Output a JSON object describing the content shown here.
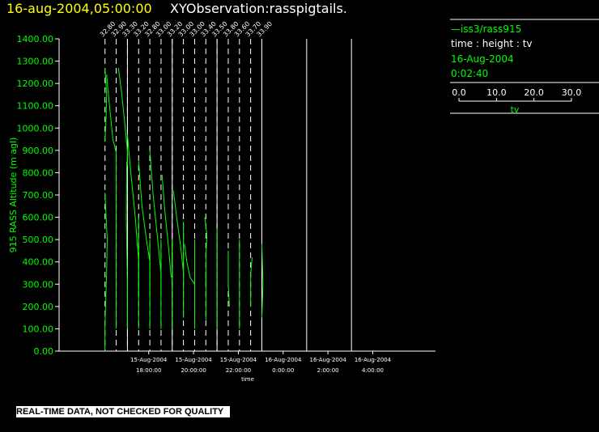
{
  "header": {
    "date_label": "16-aug-2004,05:00:00",
    "title": "XYObservation:rasspigtails."
  },
  "legend": {
    "series_line": "—iss3/rass915",
    "description": "time : height : tv",
    "date": "16-Aug-2004",
    "duration": "0:02:40",
    "scale_ticks": [
      "0.0",
      "10.0",
      "20.0",
      "30.0"
    ],
    "scale_label": "tv"
  },
  "footer": {
    "quality_note": "REAL-TIME DATA, NOT CHECKED FOR QUALITY"
  },
  "colors": {
    "background": "#000000",
    "trace": "#00ff00",
    "axis": "#ffffff",
    "title_date": "#ffff00"
  },
  "chart_data": {
    "type": "line",
    "title": "XYObservation:rasspigtails.",
    "ylabel": "915 RASS Altitude (m agl)",
    "xlabel": "time",
    "ylim": [
      0,
      1400
    ],
    "yticks": [
      "0.00",
      "100.00",
      "200.00",
      "300.00",
      "400.00",
      "500.00",
      "600.00",
      "700.00",
      "800.00",
      "900.00",
      "1000.00",
      "1100.00",
      "1200.00",
      "1300.00",
      "1400.00"
    ],
    "xlim_hours": [
      14.0,
      30.8
    ],
    "xticks": [
      {
        "hour": 18,
        "date": "15-Aug-2004",
        "time": "18:00:00"
      },
      {
        "hour": 20,
        "date": "15-Aug-2004",
        "time": "20:00:00"
      },
      {
        "hour": 22,
        "date": "15-Aug-2004",
        "time": "22:00:00"
      },
      {
        "hour": 24,
        "date": "16-Aug-2004",
        "time": "0:00:00"
      },
      {
        "hour": 26,
        "date": "16-Aug-2004",
        "time": "2:00:00"
      },
      {
        "hour": 28,
        "date": "16-Aug-2004",
        "time": "4:00:00"
      }
    ],
    "reference_lines": [
      {
        "hour": 16.05,
        "label": "32.80"
      },
      {
        "hour": 16.55,
        "label": "32.90"
      },
      {
        "hour": 17.05,
        "label": "33.30"
      },
      {
        "hour": 17.55,
        "label": "33.20"
      },
      {
        "hour": 18.05,
        "label": "32.80"
      },
      {
        "hour": 18.55,
        "label": "33.00"
      },
      {
        "hour": 19.05,
        "label": "33.20"
      },
      {
        "hour": 19.55,
        "label": "33.00"
      },
      {
        "hour": 20.05,
        "label": "33.00"
      },
      {
        "hour": 20.55,
        "label": "33.40"
      },
      {
        "hour": 21.05,
        "label": "33.50"
      },
      {
        "hour": 21.55,
        "label": "33.80"
      },
      {
        "hour": 22.05,
        "label": "33.60"
      },
      {
        "hour": 22.55,
        "label": "33.70"
      },
      {
        "hour": 23.05,
        "label": "33.90"
      }
    ],
    "solid_lines_hours": [
      17.05,
      19.05,
      21.05,
      23.05,
      25.05,
      27.05
    ],
    "series": [
      {
        "points": [
          [
            16.05,
            0
          ],
          [
            16.05,
            120
          ],
          [
            16.12,
            350
          ],
          [
            16.15,
            500
          ],
          [
            16.1,
            600
          ],
          [
            16.05,
            710
          ]
        ]
      },
      {
        "points": [
          [
            16.05,
            940
          ],
          [
            16.1,
            1050
          ],
          [
            16.12,
            1150
          ],
          [
            16.08,
            1220
          ],
          [
            16.05,
            1270
          ]
        ]
      },
      {
        "points": [
          [
            16.55,
            100
          ],
          [
            16.55,
            400
          ],
          [
            16.55,
            700
          ],
          [
            16.55,
            890
          ],
          [
            16.4,
            950
          ],
          [
            16.3,
            1050
          ],
          [
            16.2,
            1150
          ],
          [
            16.12,
            1240
          ]
        ]
      },
      {
        "points": [
          [
            16.65,
            1270
          ],
          [
            16.8,
            1150
          ],
          [
            16.95,
            1000
          ],
          [
            17.05,
            900
          ],
          [
            17.05,
            830
          ]
        ]
      },
      {
        "points": [
          [
            17.05,
            100
          ],
          [
            17.05,
            300
          ],
          [
            17.0,
            600
          ],
          [
            17.02,
            850
          ]
        ]
      },
      {
        "points": [
          [
            17.05,
            970
          ],
          [
            17.2,
            800
          ],
          [
            17.4,
            600
          ],
          [
            17.55,
            400
          ],
          [
            17.55,
            250
          ]
        ]
      },
      {
        "points": [
          [
            17.55,
            100
          ],
          [
            17.55,
            400
          ],
          [
            17.55,
            600
          ]
        ]
      },
      {
        "points": [
          [
            17.55,
            850
          ],
          [
            17.7,
            650
          ],
          [
            17.9,
            500
          ],
          [
            18.05,
            400
          ],
          [
            18.05,
            250
          ]
        ]
      },
      {
        "points": [
          [
            18.05,
            100
          ],
          [
            18.05,
            300
          ],
          [
            18.05,
            500
          ]
        ]
      },
      {
        "points": [
          [
            18.05,
            900
          ],
          [
            18.2,
            700
          ],
          [
            18.4,
            500
          ],
          [
            18.55,
            350
          ],
          [
            18.55,
            250
          ]
        ]
      },
      {
        "points": [
          [
            18.55,
            100
          ],
          [
            18.55,
            300
          ],
          [
            18.55,
            500
          ]
        ]
      },
      {
        "points": [
          [
            18.6,
            790
          ],
          [
            18.7,
            650
          ],
          [
            18.9,
            450
          ],
          [
            19.0,
            330
          ]
        ]
      },
      {
        "points": [
          [
            19.05,
            100
          ],
          [
            19.05,
            300
          ],
          [
            19.05,
            500
          ]
        ]
      },
      {
        "points": [
          [
            19.1,
            720
          ],
          [
            19.25,
            600
          ],
          [
            19.45,
            450
          ],
          [
            19.55,
            350
          ]
        ]
      },
      {
        "points": [
          [
            19.55,
            150
          ],
          [
            19.55,
            400
          ],
          [
            19.55,
            580
          ]
        ]
      },
      {
        "points": [
          [
            19.6,
            480
          ],
          [
            19.7,
            400
          ],
          [
            19.85,
            330
          ],
          [
            20.05,
            300
          ]
        ]
      },
      {
        "points": [
          [
            20.05,
            100
          ],
          [
            20.05,
            350
          ],
          [
            20.05,
            500
          ]
        ]
      },
      {
        "points": [
          [
            20.5,
            600
          ],
          [
            20.6,
            520
          ],
          [
            20.55,
            430
          ],
          [
            20.55,
            300
          ]
        ]
      },
      {
        "points": [
          [
            20.55,
            140
          ],
          [
            20.55,
            350
          ]
        ]
      },
      {
        "points": [
          [
            21.05,
            100
          ],
          [
            21.05,
            350
          ],
          [
            21.05,
            550
          ]
        ]
      },
      {
        "points": [
          [
            21.55,
            450
          ],
          [
            21.55,
            300
          ],
          [
            21.6,
            200
          ]
        ]
      },
      {
        "points": [
          [
            22.05,
            100
          ],
          [
            22.05,
            300
          ],
          [
            22.05,
            500
          ]
        ]
      },
      {
        "points": [
          [
            22.55,
            200
          ],
          [
            22.55,
            350
          ],
          [
            22.62,
            420
          ]
        ]
      },
      {
        "points": [
          [
            23.05,
            150
          ],
          [
            23.1,
            300
          ],
          [
            23.05,
            480
          ]
        ]
      }
    ]
  }
}
